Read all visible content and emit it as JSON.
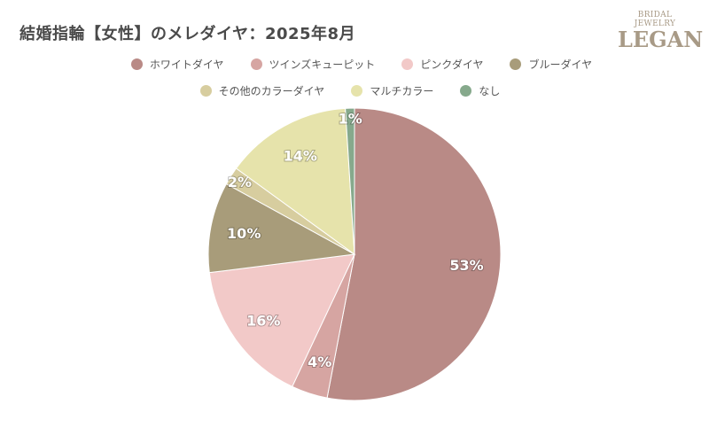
{
  "chart_data": {
    "type": "pie",
    "title": "結婚指輪【女性】のメレダイヤ：2025年8月",
    "legend_position": "top",
    "series": [
      {
        "name": "ホワイトダイヤ",
        "value": 53,
        "label": "53%",
        "color": "#b98a86"
      },
      {
        "name": "ツインズキューピット",
        "value": 4,
        "label": "4%",
        "color": "#d6a5a2"
      },
      {
        "name": "ピンクダイヤ",
        "value": 16,
        "label": "16%",
        "color": "#f2c9c8"
      },
      {
        "name": "ブルーダイヤ",
        "value": 10,
        "label": "10%",
        "color": "#a89c7a"
      },
      {
        "name": "その他のカラーダイヤ",
        "value": 2,
        "label": "2%",
        "color": "#d7cd9f"
      },
      {
        "name": "マルチカラー",
        "value": 14,
        "label": "14%",
        "color": "#e6e3ab"
      },
      {
        "name": "なし",
        "value": 1,
        "label": "1%",
        "color": "#86a98c"
      }
    ]
  },
  "logo": {
    "sub": "BRIDAL JEWELRY",
    "main": "LEGAN"
  }
}
